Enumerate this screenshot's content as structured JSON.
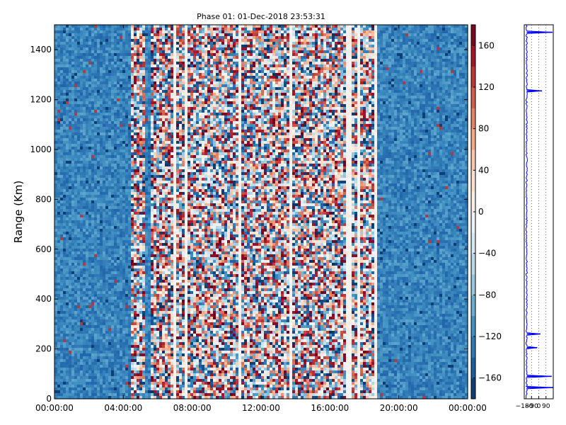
{
  "chart_data": [
    {
      "type": "heatmap",
      "title": "Phase 01: 01-Dec-2018 23:53:31",
      "xlabel": "",
      "ylabel": "Range (Km)",
      "x_ticks": [
        "00:00:00",
        "04:00:00",
        "08:00:00",
        "12:00:00",
        "16:00:00",
        "20:00:00",
        "00:00:00"
      ],
      "x_range_hours": [
        0,
        24
      ],
      "y_ticks": [
        0,
        200,
        400,
        600,
        800,
        1000,
        1200,
        1400
      ],
      "ylim": [
        0,
        1500
      ],
      "colorbar": {
        "ticks": [
          -160,
          -120,
          -80,
          -40,
          0,
          40,
          80,
          120,
          160
        ],
        "tick_labels": [
          "−160",
          "−120",
          "−80",
          "−40",
          "0",
          "40",
          "80",
          "120",
          "160"
        ],
        "range": [
          -180,
          180
        ],
        "colormap": "RdBu_r"
      },
      "noisy_time_bands_hours": [
        [
          4.4,
          5.2
        ],
        [
          5.6,
          10.0
        ],
        [
          10.0,
          14.4
        ],
        [
          14.4,
          16.2
        ],
        [
          16.2,
          18.8
        ]
      ],
      "quiet_background_value": -120
    },
    {
      "type": "line",
      "x_ticks": [
        "−180",
        "−90",
        "0",
        "90"
      ],
      "xlim": [
        -180,
        180
      ],
      "ylim": [
        0,
        1500
      ],
      "grid": true,
      "series_color": "#0000ff",
      "baseline_value": -150,
      "spikes": [
        {
          "range": 1470,
          "value": 170
        },
        {
          "range": 1235,
          "value": 40
        },
        {
          "range": 260,
          "value": 20
        },
        {
          "range": 205,
          "value": -20
        },
        {
          "range": 90,
          "value": 160
        },
        {
          "range": 45,
          "value": 175
        }
      ]
    }
  ]
}
